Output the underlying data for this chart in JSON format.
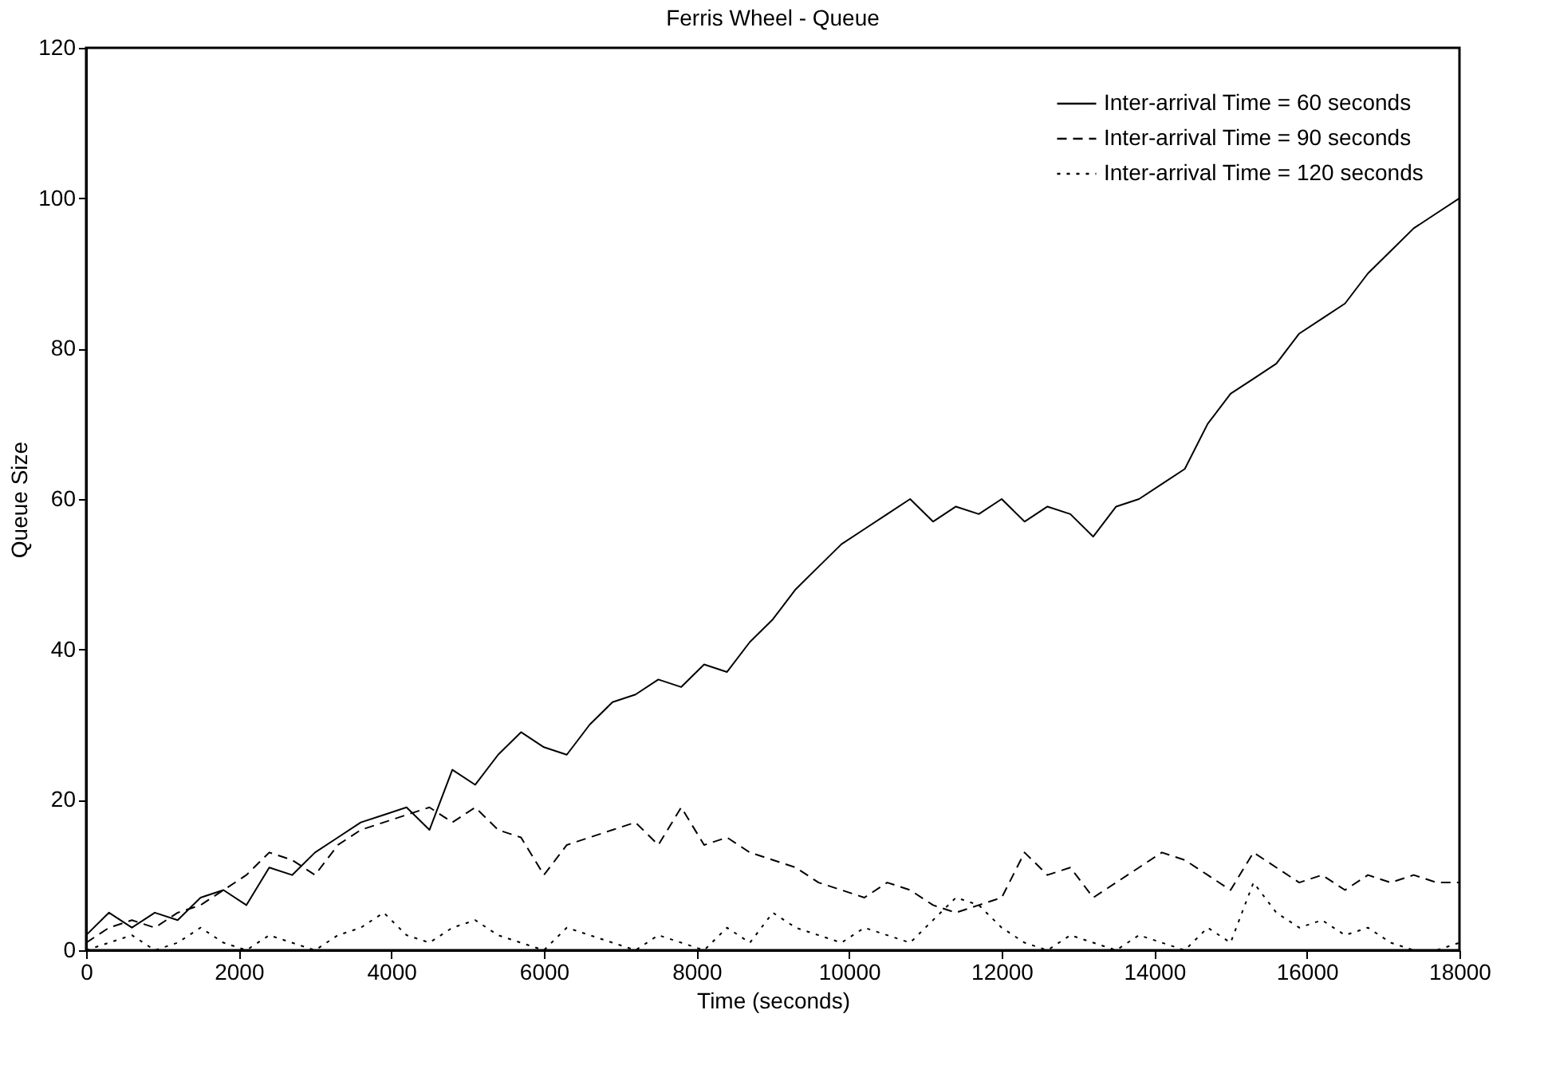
{
  "chart_data": {
    "type": "line",
    "title": "Ferris Wheel - Queue",
    "xlabel": "Time (seconds)",
    "ylabel": "Queue Size",
    "x": [
      0,
      300,
      600,
      900,
      1200,
      1500,
      1800,
      2100,
      2400,
      2700,
      3000,
      3300,
      3600,
      3900,
      4200,
      4500,
      4800,
      5100,
      5400,
      5700,
      6000,
      6300,
      6600,
      6900,
      7200,
      7500,
      7800,
      8100,
      8400,
      8700,
      9000,
      9300,
      9600,
      9900,
      10200,
      10500,
      10800,
      11100,
      11400,
      11700,
      12000,
      12300,
      12600,
      12900,
      13200,
      13500,
      13800,
      14100,
      14400,
      14700,
      15000,
      15300,
      15600,
      15900,
      16200,
      16500,
      16800,
      17100,
      17400,
      17700,
      18000
    ],
    "series": [
      {
        "name": "Inter-arrival Time = 60 seconds",
        "color": "#000000",
        "line_style": "solid",
        "values": [
          2,
          5,
          3,
          5,
          4,
          7,
          8,
          6,
          11,
          10,
          13,
          15,
          17,
          18,
          19,
          16,
          24,
          22,
          26,
          29,
          27,
          26,
          30,
          33,
          34,
          36,
          35,
          38,
          37,
          41,
          44,
          48,
          51,
          54,
          56,
          58,
          60,
          57,
          59,
          58,
          60,
          57,
          59,
          58,
          55,
          59,
          60,
          62,
          64,
          70,
          74,
          76,
          78,
          82,
          84,
          86,
          90,
          93,
          96,
          98,
          100
        ]
      },
      {
        "name": "Inter-arrival Time = 90 seconds",
        "color": "#000000",
        "line_style": "dashed",
        "values": [
          1,
          3,
          4,
          3,
          5,
          6,
          8,
          10,
          13,
          12,
          10,
          14,
          16,
          17,
          18,
          19,
          17,
          19,
          16,
          15,
          10,
          14,
          15,
          16,
          17,
          14,
          19,
          14,
          15,
          13,
          12,
          11,
          9,
          8,
          7,
          9,
          8,
          6,
          5,
          6,
          7,
          13,
          10,
          11,
          7,
          9,
          11,
          13,
          12,
          10,
          8,
          13,
          11,
          9,
          10,
          8,
          10,
          9,
          10,
          9,
          9
        ]
      },
      {
        "name": "Inter-arrival Time = 120 seconds",
        "color": "#000000",
        "line_style": "dotted",
        "values": [
          0,
          1,
          2,
          0,
          1,
          3,
          1,
          0,
          2,
          1,
          0,
          2,
          3,
          5,
          2,
          1,
          3,
          4,
          2,
          1,
          0,
          3,
          2,
          1,
          0,
          2,
          1,
          0,
          3,
          1,
          5,
          3,
          2,
          1,
          3,
          2,
          1,
          4,
          7,
          6,
          3,
          1,
          0,
          2,
          1,
          0,
          2,
          1,
          0,
          3,
          1,
          9,
          5,
          3,
          4,
          2,
          3,
          1,
          0,
          0,
          1
        ]
      }
    ],
    "xlim": [
      0,
      18000
    ],
    "xticks": [
      0,
      2000,
      4000,
      6000,
      8000,
      10000,
      12000,
      14000,
      16000,
      18000
    ],
    "ylim": [
      0,
      120
    ],
    "yticks": [
      0,
      20,
      40,
      60,
      80,
      100,
      120
    ],
    "grid": false,
    "legend": "top right",
    "marker": "none"
  }
}
